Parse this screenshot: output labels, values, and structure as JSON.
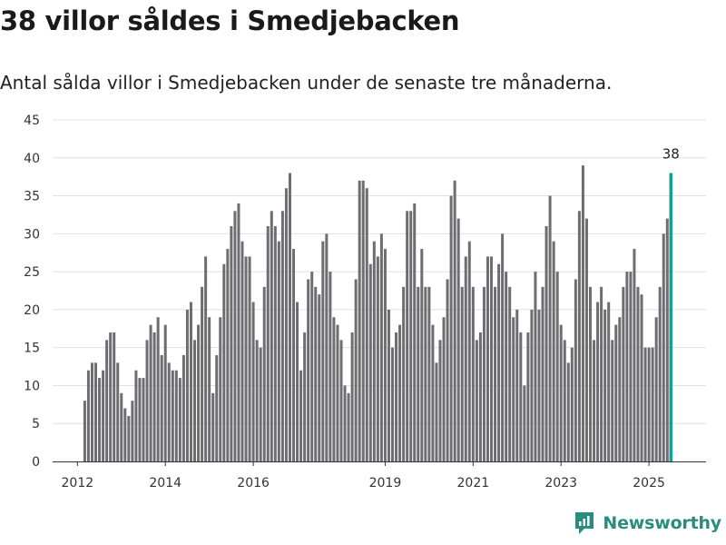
{
  "title": "38 villor såldes i Smedjebacken",
  "subtitle": "Antal sålda villor i Smedjebacken under de senaste tre månaderna.",
  "brand": {
    "name": "Newsworthy",
    "color": "#2a8c7e"
  },
  "colors": {
    "bar": "#6e6d72",
    "highlight": "#1a9e93",
    "grid": "#e0e0e0",
    "axis": "#333333"
  },
  "chart_data": {
    "type": "bar",
    "ylim": [
      0,
      45
    ],
    "yticks": [
      0,
      5,
      10,
      15,
      20,
      25,
      30,
      35,
      40,
      45
    ],
    "xtick_labels": [
      "2012",
      "2014",
      "2016",
      "2019",
      "2021",
      "2023",
      "2025"
    ],
    "period_start": "2012-03",
    "period_step": "month",
    "grid": true,
    "values": [
      8,
      12,
      13,
      13,
      11,
      12,
      16,
      17,
      17,
      13,
      9,
      7,
      6,
      8,
      12,
      11,
      11,
      16,
      18,
      17,
      19,
      14,
      18,
      13,
      12,
      12,
      11,
      14,
      20,
      21,
      16,
      18,
      23,
      27,
      19,
      9,
      14,
      19,
      26,
      28,
      31,
      33,
      34,
      29,
      27,
      27,
      21,
      16,
      15,
      23,
      31,
      33,
      31,
      29,
      33,
      36,
      38,
      28,
      21,
      12,
      17,
      24,
      25,
      23,
      22,
      29,
      30,
      25,
      19,
      18,
      16,
      10,
      9,
      17,
      24,
      37,
      37,
      36,
      26,
      29,
      27,
      30,
      28,
      20,
      15,
      17,
      18,
      23,
      33,
      33,
      34,
      23,
      28,
      23,
      23,
      18,
      13,
      16,
      19,
      24,
      35,
      37,
      32,
      23,
      27,
      29,
      23,
      16,
      17,
      23,
      27,
      27,
      23,
      26,
      30,
      25,
      23,
      19,
      20,
      17,
      10,
      17,
      20,
      25,
      20,
      23,
      31,
      35,
      29,
      25,
      18,
      16,
      13,
      15,
      24,
      33,
      39,
      32,
      23,
      16,
      21,
      23,
      20,
      21,
      16,
      18,
      19,
      23,
      25,
      25,
      28,
      23,
      22,
      15,
      15,
      15,
      19,
      23,
      30,
      32,
      38
    ],
    "highlight_label": "38"
  }
}
